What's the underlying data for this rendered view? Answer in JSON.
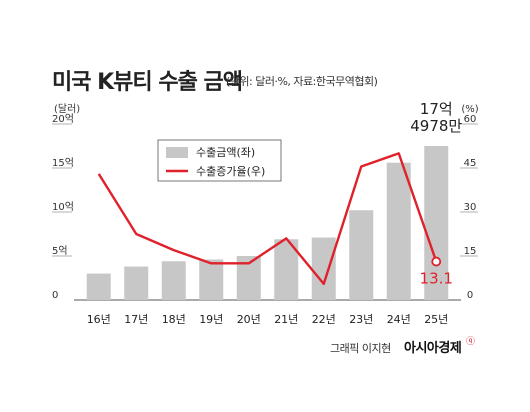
{
  "header": {
    "title": "미국 K뷰티 수출 금액",
    "subtitle": "(단위: 달러·%, 자료:한국무역협회)"
  },
  "footer": {
    "credit": "그래픽 이지현",
    "brand": "아시아경제",
    "brand_mark": "ⓠ"
  },
  "colors": {
    "bar": "#c7c7c7",
    "line": "#e0212b",
    "axis_text": "#333333",
    "grid": "#e6e6e6"
  },
  "chart_data": {
    "type": "bar",
    "title": "미국 K뷰티 수출 금액",
    "categories": [
      "16년",
      "17년",
      "18년",
      "19년",
      "20년",
      "21년",
      "22년",
      "23년",
      "24년",
      "25년"
    ],
    "left_axis": {
      "unit_label": "(달러)",
      "range": [
        0,
        20
      ],
      "tick_values": [
        0,
        5,
        10,
        15,
        20
      ],
      "tick_labels": [
        "0",
        "5억",
        "10억",
        "15억",
        "20억"
      ]
    },
    "right_axis": {
      "unit_label": "(%)",
      "range": [
        0,
        60
      ],
      "tick_values": [
        0,
        15,
        30,
        45,
        60
      ],
      "tick_labels": [
        "0",
        "15",
        "30",
        "45",
        "60"
      ]
    },
    "series": [
      {
        "name": "수출금액(좌)",
        "type": "bar",
        "axis": "left",
        "values": [
          3.0,
          3.8,
          4.4,
          4.6,
          5.0,
          6.9,
          7.1,
          10.2,
          15.6,
          17.5
        ]
      },
      {
        "name": "수출증가율(우)",
        "type": "line",
        "axis": "right",
        "values": [
          43,
          22.5,
          17,
          12.5,
          12.5,
          21,
          5.5,
          45.5,
          50,
          13.1
        ]
      }
    ],
    "annotations": [
      {
        "category": "25년",
        "series": "수출금액(좌)",
        "text_line1": "17억",
        "text_line2": "4978만"
      },
      {
        "category": "25년",
        "series": "수출증가율(우)",
        "text": "13.1"
      }
    ],
    "legend": {
      "placement": "top-left"
    },
    "grid": false
  }
}
